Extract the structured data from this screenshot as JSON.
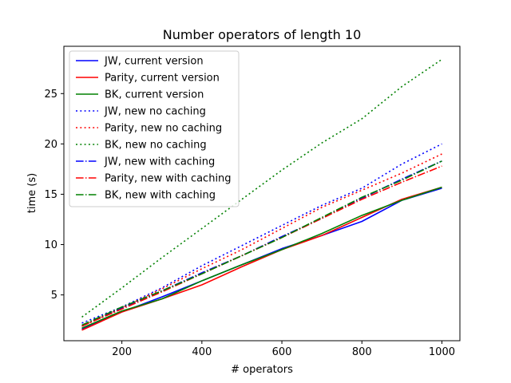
{
  "chart_data": {
    "type": "line",
    "title": "Number operators of length 10",
    "xlabel": "# operators",
    "ylabel": "time (s)",
    "xlim": [
      55,
      1045
    ],
    "ylim": [
      0.45,
      29.7
    ],
    "xticks": [
      200,
      400,
      600,
      800,
      1000
    ],
    "yticks": [
      5,
      10,
      15,
      20,
      25
    ],
    "grid": false,
    "legend_position": "top-left",
    "x": [
      100,
      200,
      300,
      400,
      500,
      600,
      700,
      800,
      900,
      1000
    ],
    "series": [
      {
        "name": "JW, current version",
        "color": "#0000ff",
        "style": "solid",
        "values": [
          1.6,
          3.3,
          4.8,
          6.4,
          8.0,
          9.6,
          10.9,
          12.3,
          14.4,
          15.6
        ]
      },
      {
        "name": "Parity, current version",
        "color": "#ff0000",
        "style": "solid",
        "values": [
          1.5,
          3.3,
          4.6,
          6.0,
          7.8,
          9.5,
          10.9,
          12.7,
          14.5,
          15.7
        ]
      },
      {
        "name": "BK, current version",
        "color": "#008000",
        "style": "solid",
        "values": [
          1.7,
          3.4,
          4.6,
          6.4,
          8.0,
          9.5,
          11.1,
          12.9,
          14.4,
          15.7
        ]
      },
      {
        "name": "JW, new no caching",
        "color": "#0000ff",
        "style": "dotted",
        "values": [
          2.2,
          3.8,
          5.7,
          7.9,
          9.9,
          11.9,
          13.9,
          15.6,
          18.0,
          20.0
        ]
      },
      {
        "name": "Parity, new no caching",
        "color": "#ff0000",
        "style": "dotted",
        "values": [
          1.9,
          3.7,
          5.6,
          7.6,
          9.5,
          11.6,
          13.7,
          15.4,
          17.1,
          19.0
        ]
      },
      {
        "name": "BK, new no caching",
        "color": "#008000",
        "style": "dotted",
        "values": [
          2.8,
          5.7,
          8.7,
          11.6,
          14.5,
          17.4,
          20.1,
          22.5,
          25.7,
          28.4
        ]
      },
      {
        "name": "JW, new with caching",
        "color": "#0000ff",
        "style": "dashdot",
        "values": [
          1.9,
          3.7,
          5.4,
          7.2,
          8.9,
          10.8,
          12.6,
          14.6,
          16.5,
          18.3
        ]
      },
      {
        "name": "Parity, new with caching",
        "color": "#ff0000",
        "style": "dashdot",
        "values": [
          1.9,
          3.6,
          5.3,
          7.1,
          8.9,
          10.7,
          12.6,
          14.5,
          16.2,
          17.8
        ]
      },
      {
        "name": "BK, new with caching",
        "color": "#008000",
        "style": "dashdot",
        "values": [
          2.0,
          3.8,
          5.4,
          7.1,
          8.9,
          10.7,
          12.7,
          14.7,
          16.4,
          18.3
        ]
      }
    ]
  }
}
